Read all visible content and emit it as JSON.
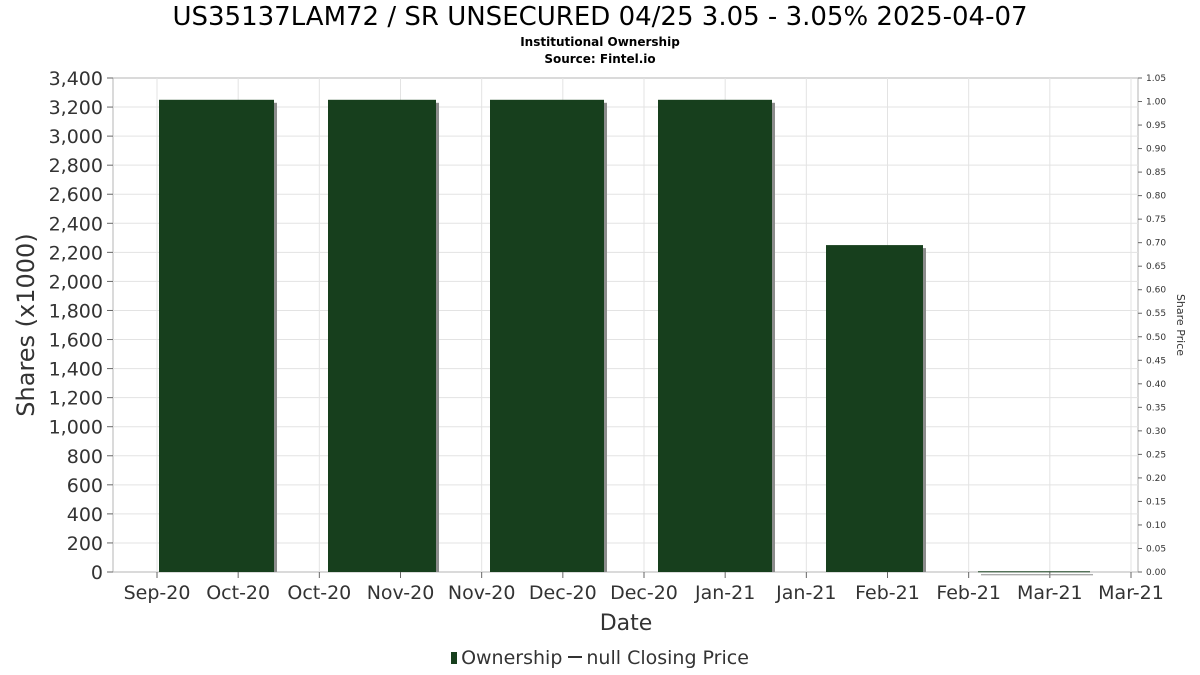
{
  "title": "US35137LAM72 / SR UNSECURED 04/25 3.05 - 3.05% 2025-04-07",
  "subtitle1": "Institutional Ownership",
  "subtitle2": "Source: Fintel.io",
  "legend": {
    "ownership": "Ownership",
    "price": "null Closing Price"
  },
  "colors": {
    "bar": "#173f1d",
    "bar_shadow": "#8c8c8c",
    "grid": "#e3e3e3"
  },
  "chart_data": {
    "type": "bar",
    "title": "US35137LAM72 / SR UNSECURED 04/25 3.05 - 3.05% 2025-04-07",
    "xlabel": "Date",
    "ylabel": "Shares (x1000)",
    "y2label": "Share Price",
    "ylim": [
      0,
      3400
    ],
    "y2lim": [
      0,
      1.05
    ],
    "yticks": [
      0,
      200,
      400,
      600,
      800,
      1000,
      1200,
      1400,
      1600,
      1800,
      2000,
      2200,
      2400,
      2600,
      2800,
      3000,
      3200,
      3400
    ],
    "yticklabels": [
      "0",
      "200",
      "400",
      "600",
      "800",
      "1,000",
      "1,200",
      "1,400",
      "1,600",
      "1,800",
      "2,000",
      "2,200",
      "2,400",
      "2,600",
      "2,800",
      "3,000",
      "3,200",
      "3,400"
    ],
    "y2ticks": [
      0,
      0.05,
      0.1,
      0.15,
      0.2,
      0.25,
      0.3,
      0.35,
      0.4,
      0.45,
      0.5,
      0.55,
      0.6,
      0.65,
      0.7,
      0.75,
      0.8,
      0.85,
      0.9,
      0.95,
      1.0,
      1.05
    ],
    "y2ticklabels": [
      "0.00",
      "0.05",
      "0.10",
      "0.15",
      "0.20",
      "0.25",
      "0.30",
      "0.35",
      "0.40",
      "0.45",
      "0.50",
      "0.55",
      "0.60",
      "0.65",
      "0.70",
      "0.75",
      "0.80",
      "0.85",
      "0.90",
      "0.95",
      "1.00",
      "1.05"
    ],
    "xticklabels": [
      "Sep-20",
      "Oct-20",
      "Oct-20",
      "Nov-20",
      "Nov-20",
      "Dec-20",
      "Dec-20",
      "Jan-21",
      "Jan-21",
      "Feb-21",
      "Feb-21",
      "Mar-21",
      "Mar-21"
    ],
    "grid": true,
    "legend_position": "bottom",
    "series": [
      {
        "name": "Ownership",
        "bars": [
          {
            "start": "2020-09-30",
            "end": "2020-10-31",
            "value": 3250
          },
          {
            "start": "2020-10-31",
            "end": "2020-11-30",
            "value": 3250
          },
          {
            "start": "2020-11-30",
            "end": "2020-12-31",
            "value": 3250
          },
          {
            "start": "2020-12-31",
            "end": "2021-01-31",
            "value": 3250
          },
          {
            "start": "2021-01-31",
            "end": "2021-02-28",
            "value": 2250
          },
          {
            "start": "2021-02-28",
            "end": "2021-03-31",
            "value": 5
          }
        ]
      }
    ]
  }
}
